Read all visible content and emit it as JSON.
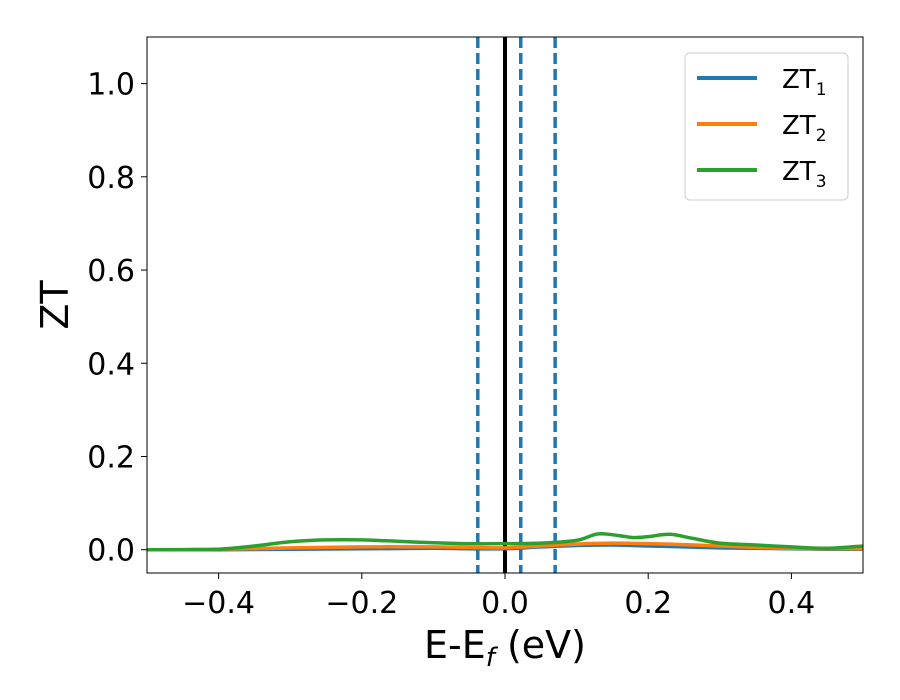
{
  "chart_data": {
    "type": "line",
    "xlabel_main": "E-E",
    "xlabel_sub": "f",
    "xlabel_unit": " (eV)",
    "ylabel": "ZT",
    "xlim": [
      -0.5,
      0.5
    ],
    "ylim": [
      -0.05,
      1.1
    ],
    "x_ticks": [
      -0.4,
      -0.2,
      0.0,
      0.2,
      0.4
    ],
    "x_tick_labels": [
      "−0.4",
      "−0.2",
      "0.0",
      "0.2",
      "0.4"
    ],
    "y_ticks": [
      0.0,
      0.2,
      0.4,
      0.6,
      0.8,
      1.0
    ],
    "y_tick_labels": [
      "0.0",
      "0.2",
      "0.4",
      "0.6",
      "0.8",
      "1.0"
    ],
    "grid": false,
    "legend_position": "top-right",
    "vlines": [
      {
        "x": 0.0,
        "style": "solid",
        "color": "#000000"
      },
      {
        "x": -0.038,
        "style": "dashed",
        "color": "#1f77b4"
      },
      {
        "x": 0.022,
        "style": "dashed",
        "color": "#1f77b4"
      },
      {
        "x": 0.07,
        "style": "dashed",
        "color": "#1f77b4"
      }
    ],
    "series": [
      {
        "name": "ZT",
        "name_sub": "1",
        "color": "#1f77b4",
        "x": [
          -0.5,
          -0.4,
          -0.3,
          -0.2,
          -0.1,
          -0.05,
          0.0,
          0.05,
          0.1,
          0.15,
          0.2,
          0.25,
          0.3,
          0.35,
          0.4,
          0.45,
          0.5
        ],
        "y": [
          0.0,
          0.0,
          0.001,
          0.002,
          0.003,
          0.002,
          0.002,
          0.006,
          0.009,
          0.01,
          0.008,
          0.006,
          0.004,
          0.003,
          0.002,
          0.001,
          0.001
        ]
      },
      {
        "name": "ZT",
        "name_sub": "2",
        "color": "#ff7f0e",
        "x": [
          -0.5,
          -0.4,
          -0.3,
          -0.2,
          -0.1,
          -0.05,
          0.0,
          0.05,
          0.1,
          0.15,
          0.2,
          0.25,
          0.3,
          0.35,
          0.4,
          0.45,
          0.5
        ],
        "y": [
          0.0,
          0.001,
          0.004,
          0.006,
          0.006,
          0.005,
          0.004,
          0.008,
          0.012,
          0.014,
          0.013,
          0.011,
          0.008,
          0.005,
          0.003,
          0.002,
          0.002
        ]
      },
      {
        "name": "ZT",
        "name_sub": "3",
        "color": "#2ca02c",
        "x": [
          -0.5,
          -0.45,
          -0.4,
          -0.35,
          -0.3,
          -0.25,
          -0.2,
          -0.15,
          -0.1,
          -0.05,
          0.0,
          0.05,
          0.1,
          0.13,
          0.16,
          0.18,
          0.2,
          0.23,
          0.26,
          0.3,
          0.35,
          0.4,
          0.45,
          0.5
        ],
        "y": [
          0.0,
          0.0,
          0.001,
          0.008,
          0.017,
          0.021,
          0.021,
          0.018,
          0.015,
          0.013,
          0.013,
          0.014,
          0.02,
          0.034,
          0.03,
          0.026,
          0.028,
          0.033,
          0.025,
          0.014,
          0.01,
          0.006,
          0.003,
          0.008
        ]
      }
    ]
  }
}
